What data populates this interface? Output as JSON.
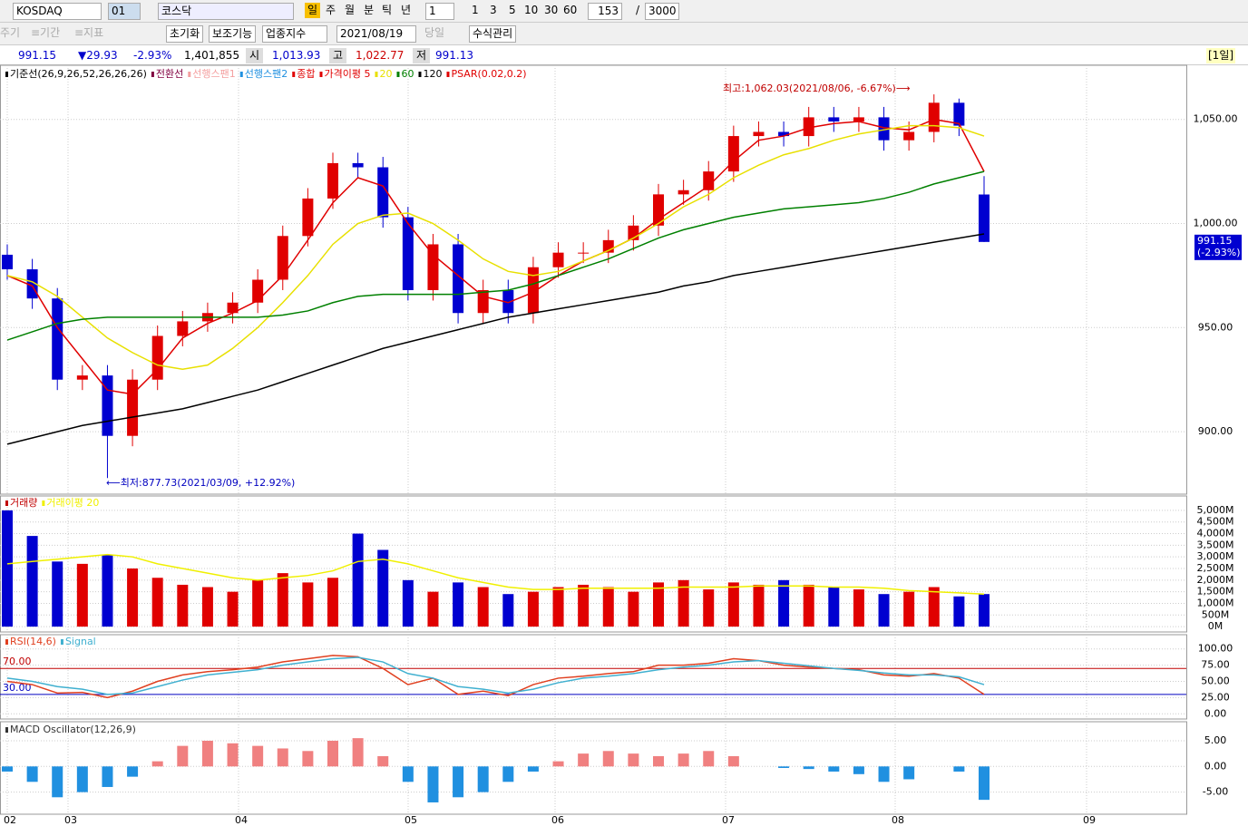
{
  "toolbar": {
    "symbol": "KOSDAQ",
    "code": "01",
    "name": "코스닥",
    "periods": [
      "일",
      "주",
      "월",
      "분",
      "틱",
      "년"
    ],
    "unit": "1",
    "minutes": [
      "1",
      "3",
      "5",
      "10",
      "30",
      "60"
    ],
    "count": "153",
    "separator": "/",
    "max_count": "3000",
    "row2": [
      "주기",
      "≡기간",
      "≡지표"
    ],
    "buttons": [
      "초기화",
      "보조기능",
      "업종지수"
    ],
    "date": "2021/08/19",
    "today": "당일",
    "formula": "수식관리"
  },
  "quote": {
    "price": "991.15",
    "change": "▼29.93",
    "rate": "-2.93%",
    "volume": "1,401,855",
    "open_label": "시",
    "open": "1,013.93",
    "high_label": "고",
    "high": "1,022.77",
    "low_label": "저",
    "low": "991.13",
    "period": "[1일]"
  },
  "chart_data": [
    {
      "type": "candlestick",
      "open": [
        985,
        978,
        964,
        925,
        927,
        898,
        925,
        946,
        953,
        957,
        962,
        973,
        994,
        1012,
        1029,
        1027,
        1003,
        968,
        990,
        957,
        968,
        957,
        979,
        986,
        986,
        992,
        999,
        1014,
        1016,
        1025,
        1042,
        1044,
        1042,
        1051,
        1049,
        1051,
        1040,
        1044,
        1058,
        1013.93
      ],
      "high": [
        990,
        983,
        969,
        932,
        932,
        930,
        951,
        958,
        962,
        967,
        978,
        999,
        1017,
        1034,
        1034,
        1032,
        1008,
        995,
        995,
        973,
        973,
        984,
        991,
        991,
        997,
        1004,
        1019,
        1021,
        1030,
        1047,
        1049,
        1049,
        1056,
        1056,
        1056,
        1056,
        1049,
        1062.03,
        1060,
        1022.77
      ],
      "low": [
        973,
        959,
        920,
        920,
        877.73,
        893,
        920,
        941,
        948,
        952,
        957,
        968,
        989,
        1007,
        1022,
        998,
        963,
        963,
        952,
        952,
        952,
        952,
        974,
        981,
        981,
        987,
        994,
        1009,
        1011,
        1020,
        1037,
        1037,
        1037,
        1044,
        1044,
        1035,
        1035,
        1039,
        1042,
        991.13
      ],
      "close": [
        978,
        964,
        925,
        927,
        898,
        925,
        946,
        953,
        957,
        962,
        973,
        994,
        1012,
        1029,
        1027,
        1003,
        968,
        990,
        957,
        968,
        957,
        979,
        986,
        986,
        992,
        999,
        1014,
        1016,
        1025,
        1042,
        1044,
        1042,
        1051,
        1049,
        1051,
        1040,
        1044,
        1058,
        1047,
        991.15
      ],
      "up_color": "#e00000",
      "down_color": "#0000d0",
      "series": [
        {
          "name": "기준선(26,9,26,52,26,26,26)",
          "color": "#000000"
        },
        {
          "name": "전환선",
          "color": "#800040"
        },
        {
          "name": "선행스팬1",
          "color": "#f4a0a0"
        },
        {
          "name": "선행스팬2",
          "color": "#2090e0"
        },
        {
          "name": "종합",
          "color": "#e00000"
        },
        {
          "name": "가격이평 5",
          "color": "#e00000",
          "values": [
            975,
            970,
            950,
            935,
            920,
            918,
            930,
            945,
            952,
            957,
            963,
            975,
            992,
            1010,
            1022,
            1018,
            1000,
            985,
            975,
            965,
            962,
            967,
            975,
            982,
            987,
            993,
            1002,
            1010,
            1018,
            1030,
            1040,
            1042,
            1046,
            1048,
            1049,
            1046,
            1045,
            1050,
            1048,
            1025
          ]
        },
        {
          "name": "20",
          "color": "#e8e000",
          "values": [
            975,
            972,
            965,
            955,
            945,
            938,
            932,
            930,
            932,
            940,
            950,
            962,
            975,
            990,
            1000,
            1004,
            1005,
            1000,
            992,
            983,
            977,
            975,
            977,
            982,
            987,
            993,
            1000,
            1008,
            1014,
            1022,
            1028,
            1033,
            1036,
            1040,
            1043,
            1045,
            1047,
            1047,
            1046,
            1042
          ]
        },
        {
          "name": "60",
          "color": "#008000",
          "values": [
            944,
            948,
            952,
            954,
            955,
            955,
            955,
            955,
            955,
            955,
            955,
            956,
            958,
            962,
            965,
            966,
            966,
            966,
            966,
            967,
            968,
            971,
            975,
            979,
            983,
            988,
            993,
            997,
            1000,
            1003,
            1005,
            1007,
            1008,
            1009,
            1010,
            1012,
            1015,
            1019,
            1022,
            1025
          ]
        },
        {
          "name": "120",
          "color": "#000000",
          "values": [
            894,
            897,
            900,
            903,
            905,
            907,
            909,
            911,
            914,
            917,
            920,
            924,
            928,
            932,
            936,
            940,
            943,
            946,
            949,
            952,
            955,
            957,
            959,
            961,
            963,
            965,
            967,
            970,
            972,
            975,
            977,
            979,
            981,
            983,
            985,
            987,
            989,
            991,
            993,
            995
          ]
        },
        {
          "name": "PSAR(0.02,0.2)",
          "color": "#e00000"
        }
      ],
      "ylim": [
        870,
        1076
      ],
      "yticks": [
        {
          "value": 900,
          "label": "900.00"
        },
        {
          "value": 950,
          "label": "950.00"
        },
        {
          "value": 1000,
          "label": "1,000.00"
        },
        {
          "value": 1050,
          "label": "1,050.00"
        }
      ],
      "annotations": [
        "최고:1,062.03(2021/08/06, -6.67%)⟶",
        "⟵최저:877.73(2021/03/09, +12.92%)"
      ],
      "last_label": [
        "991.15",
        "(-2.93%)"
      ],
      "x_labels": [
        "02",
        "03",
        "04",
        "05",
        "06",
        "07",
        "08",
        "09"
      ]
    },
    {
      "type": "bar",
      "values": [
        5000,
        3900,
        2800,
        2700,
        3100,
        2500,
        2100,
        1800,
        1700,
        1500,
        2000,
        2300,
        1900,
        2100,
        4000,
        3300,
        2000,
        1500,
        1900,
        1700,
        1400,
        1500,
        1700,
        1800,
        1700,
        1500,
        1900,
        2000,
        1600,
        1900,
        1800,
        2000,
        1800,
        1700,
        1600,
        1400,
        1500,
        1700,
        1300,
        1400
      ],
      "name": "거래량",
      "series": [
        {
          "name": "거래이평 20",
          "color": "#f0f000",
          "values": [
            2700,
            2800,
            2900,
            3000,
            3100,
            3000,
            2700,
            2500,
            2300,
            2100,
            2000,
            2100,
            2200,
            2400,
            2800,
            2900,
            2700,
            2400,
            2100,
            1900,
            1700,
            1600,
            1600,
            1650,
            1650,
            1650,
            1650,
            1700,
            1700,
            1700,
            1750,
            1750,
            1750,
            1700,
            1700,
            1650,
            1550,
            1500,
            1450,
            1400
          ]
        }
      ],
      "ylim": [
        -230,
        5620
      ],
      "yticks": [
        {
          "value": 0,
          "label": "0M"
        },
        {
          "value": 500,
          "label": "500M"
        },
        {
          "value": 1000,
          "label": "1,000M"
        },
        {
          "value": 1500,
          "label": "1,500M"
        },
        {
          "value": 2000,
          "label": "2,000M"
        },
        {
          "value": 2500,
          "label": "2,500M"
        },
        {
          "value": 3000,
          "label": "3,000M"
        },
        {
          "value": 3500,
          "label": "3,500M"
        },
        {
          "value": 4000,
          "label": "4,000M"
        },
        {
          "value": 4500,
          "label": "4,500M"
        },
        {
          "value": 5000,
          "label": "5,000M"
        }
      ]
    },
    {
      "type": "line",
      "series": [
        {
          "name": "RSI(14,6)",
          "color": "#e04020",
          "values": [
            50,
            45,
            32,
            33,
            25,
            35,
            50,
            60,
            65,
            68,
            72,
            80,
            85,
            90,
            88,
            70,
            45,
            55,
            30,
            35,
            28,
            45,
            55,
            58,
            62,
            65,
            75,
            75,
            78,
            85,
            82,
            75,
            72,
            70,
            68,
            60,
            58,
            62,
            55,
            30
          ]
        },
        {
          "name": "Signal",
          "color": "#40b0d0",
          "values": [
            55,
            50,
            42,
            38,
            30,
            32,
            42,
            52,
            60,
            64,
            68,
            75,
            80,
            85,
            87,
            80,
            62,
            55,
            42,
            38,
            32,
            38,
            48,
            55,
            58,
            62,
            68,
            72,
            75,
            80,
            82,
            78,
            74,
            70,
            67,
            63,
            60,
            60,
            57,
            45
          ]
        }
      ],
      "levels": [
        {
          "value": 70,
          "label": "70.00",
          "color": "#c00000"
        },
        {
          "value": 30,
          "label": "30.00",
          "color": "#0000c0"
        }
      ],
      "ylim": [
        -8,
        122
      ],
      "yticks": [
        {
          "value": 0,
          "label": "0.00"
        },
        {
          "value": 25,
          "label": "25.00"
        },
        {
          "value": 50,
          "label": "50.00"
        },
        {
          "value": 75,
          "label": "75.00"
        },
        {
          "value": 100,
          "label": "100.00"
        }
      ]
    },
    {
      "type": "bar",
      "name": "MACD Oscillator(12,26,9)",
      "up_color": "#f08080",
      "down_color": "#2090e0",
      "values": [
        -1,
        -3,
        -6,
        -5,
        -4,
        -2,
        1,
        4,
        5,
        4.5,
        4,
        3.5,
        3,
        5,
        5.5,
        2,
        -3,
        -7,
        -6,
        -5,
        -3,
        -1,
        1,
        2.5,
        3,
        2.5,
        2,
        2.5,
        3,
        2,
        0,
        -0.3,
        -0.5,
        -1,
        -1.5,
        -3,
        -2.5,
        0,
        -1,
        -6.5
      ],
      "ylim": [
        -9.3,
        8.7
      ],
      "yticks": [
        {
          "value": -5,
          "label": "-5.00"
        },
        {
          "value": 0,
          "label": "0.00"
        },
        {
          "value": 5,
          "label": "5.00"
        }
      ]
    }
  ]
}
